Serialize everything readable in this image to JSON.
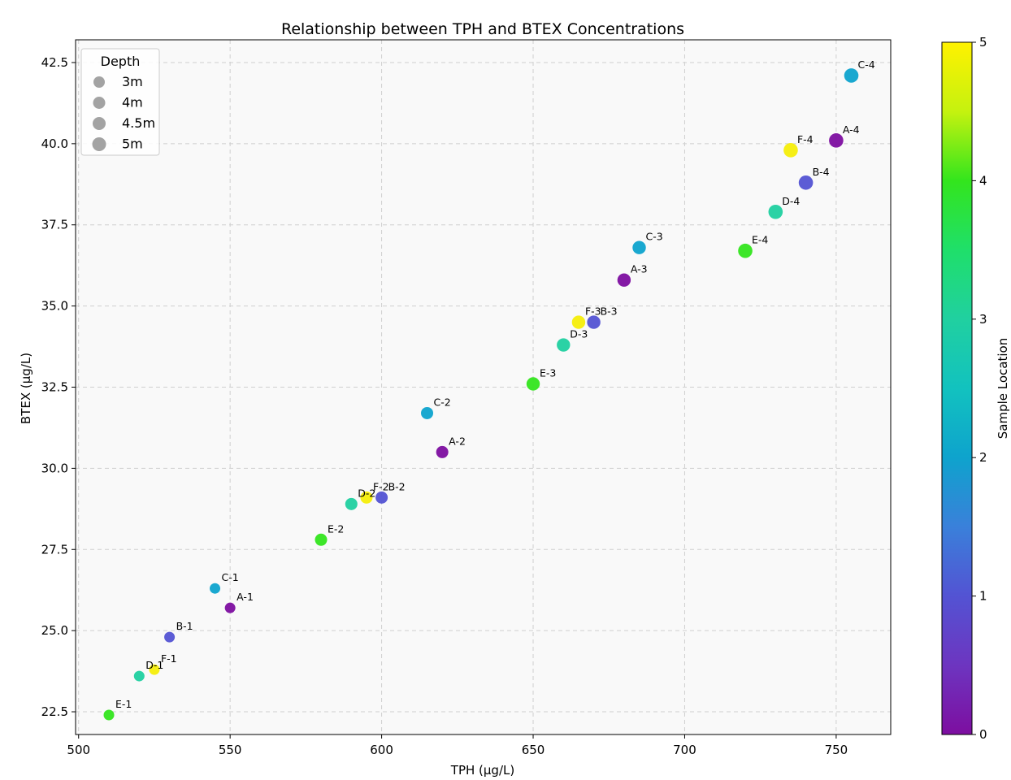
{
  "chart_data": {
    "type": "scatter",
    "title": "Relationship between TPH and BTEX Concentrations",
    "xlabel": "TPH (µg/L)",
    "ylabel": "BTEX (µg/L)",
    "xlim": [
      499,
      768
    ],
    "ylim": [
      21.8,
      43.2
    ],
    "xticks": [
      500,
      550,
      600,
      650,
      700,
      750
    ],
    "yticks": [
      22.5,
      25.0,
      27.5,
      30.0,
      32.5,
      35.0,
      37.5,
      40.0,
      42.5
    ],
    "xtick_labels": [
      "500",
      "550",
      "600",
      "650",
      "700",
      "750"
    ],
    "ytick_labels": [
      "22.5",
      "25.0",
      "27.5",
      "30.0",
      "32.5",
      "35.0",
      "37.5",
      "40.0",
      "42.5"
    ],
    "grid": true,
    "colorbar": {
      "label": "Sample Location",
      "min": 0,
      "max": 5,
      "ticks": [
        0,
        1,
        2,
        3,
        4,
        5
      ],
      "tick_labels": [
        "0",
        "1",
        "2",
        "3",
        "4",
        "5"
      ],
      "colormap": "gist_ncar-like"
    },
    "legend": {
      "title": "Depth",
      "placement": "top-left",
      "entries": [
        "3m",
        "4m",
        "4.5m",
        "5m"
      ],
      "color": "#999999"
    },
    "points": [
      {
        "label": "A-1",
        "x": 550,
        "y": 25.7,
        "location": 0,
        "depth": "3m"
      },
      {
        "label": "B-1",
        "x": 530,
        "y": 24.8,
        "location": 1,
        "depth": "3m"
      },
      {
        "label": "C-1",
        "x": 545,
        "y": 26.3,
        "location": 2,
        "depth": "3m"
      },
      {
        "label": "D-1",
        "x": 520,
        "y": 23.6,
        "location": 3,
        "depth": "3m"
      },
      {
        "label": "E-1",
        "x": 510,
        "y": 22.4,
        "location": 4,
        "depth": "3m"
      },
      {
        "label": "F-1",
        "x": 525,
        "y": 23.8,
        "location": 5,
        "depth": "3m"
      },
      {
        "label": "A-2",
        "x": 620,
        "y": 30.5,
        "location": 0,
        "depth": "4m"
      },
      {
        "label": "B-2",
        "x": 600,
        "y": 29.1,
        "location": 1,
        "depth": "4m"
      },
      {
        "label": "C-2",
        "x": 615,
        "y": 31.7,
        "location": 2,
        "depth": "4m"
      },
      {
        "label": "D-2",
        "x": 590,
        "y": 28.9,
        "location": 3,
        "depth": "4m"
      },
      {
        "label": "E-2",
        "x": 580,
        "y": 27.8,
        "location": 4,
        "depth": "4m"
      },
      {
        "label": "F-2",
        "x": 595,
        "y": 29.1,
        "location": 5,
        "depth": "4m"
      },
      {
        "label": "A-3",
        "x": 680,
        "y": 35.8,
        "location": 0,
        "depth": "4.5m"
      },
      {
        "label": "B-3",
        "x": 670,
        "y": 34.5,
        "location": 1,
        "depth": "4.5m"
      },
      {
        "label": "C-3",
        "x": 685,
        "y": 36.8,
        "location": 2,
        "depth": "4.5m"
      },
      {
        "label": "D-3",
        "x": 660,
        "y": 33.8,
        "location": 3,
        "depth": "4.5m"
      },
      {
        "label": "E-3",
        "x": 650,
        "y": 32.6,
        "location": 4,
        "depth": "4.5m"
      },
      {
        "label": "F-3",
        "x": 665,
        "y": 34.5,
        "location": 5,
        "depth": "4.5m"
      },
      {
        "label": "A-4",
        "x": 750,
        "y": 40.1,
        "location": 0,
        "depth": "5m"
      },
      {
        "label": "B-4",
        "x": 740,
        "y": 38.8,
        "location": 1,
        "depth": "5m"
      },
      {
        "label": "C-4",
        "x": 755,
        "y": 42.1,
        "location": 2,
        "depth": "5m"
      },
      {
        "label": "D-4",
        "x": 730,
        "y": 37.9,
        "location": 3,
        "depth": "5m"
      },
      {
        "label": "E-4",
        "x": 720,
        "y": 36.7,
        "location": 4,
        "depth": "5m"
      },
      {
        "label": "F-4",
        "x": 735,
        "y": 39.8,
        "location": 5,
        "depth": "5m"
      }
    ],
    "colors": {
      "0": "#7d0ea0",
      "1": "#5353d3",
      "2": "#0ea3cd",
      "3": "#20d0a0",
      "4": "#33e51d",
      "5": "#f5ee0a"
    }
  }
}
